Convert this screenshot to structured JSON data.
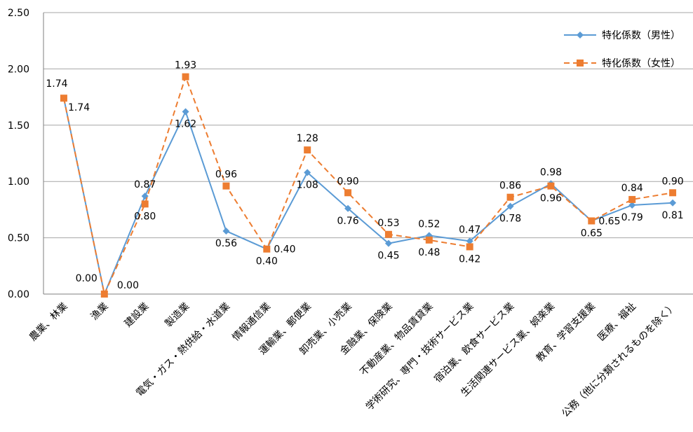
{
  "chart_data": {
    "type": "line",
    "categories": [
      "農業、林業",
      "漁業",
      "建設業",
      "製造業",
      "電気・ガス・熱供給・水道業",
      "情報通信業",
      "運輸業、郵便業",
      "卸売業、小売業",
      "金融業、保険業",
      "不動産業、物品賃貸業",
      "学術研究、専門・技術サービス業",
      "宿泊業、飲食サービス業",
      "生活関連サービス業、娯楽業",
      "教育、学習支援業",
      "医療、福祉",
      "公務（他に分類されるものを除く）"
    ],
    "series": [
      {
        "name": "特化係数（男性）",
        "color": "#5B9BD5",
        "marker": "diamond",
        "line": "solid",
        "values": [
          1.74,
          0.0,
          0.87,
          1.62,
          0.56,
          0.4,
          1.08,
          0.76,
          0.45,
          0.52,
          0.47,
          0.78,
          0.98,
          0.65,
          0.79,
          0.81
        ],
        "labels": [
          "1.74",
          "0.00",
          "0.87",
          "1.62",
          "0.56",
          "0.40",
          "1.08",
          "0.76",
          "0.45",
          "0.52",
          "0.47",
          "0.78",
          "0.98",
          "0.65",
          "0.79",
          "0.81"
        ]
      },
      {
        "name": "特化係数（女性）",
        "color": "#ED7D31",
        "marker": "square",
        "line": "dashed",
        "values": [
          1.74,
          0.0,
          0.8,
          1.93,
          0.96,
          0.4,
          1.28,
          0.9,
          0.53,
          0.48,
          0.42,
          0.86,
          0.96,
          0.65,
          0.84,
          0.9
        ],
        "labels": [
          "1.74",
          "0.00",
          "0.80",
          "1.93",
          "0.96",
          "0.40",
          "1.28",
          "0.90",
          "0.53",
          "0.48",
          "0.42",
          "0.86",
          "0.96",
          "0.65",
          "0.84",
          "0.90"
        ]
      }
    ],
    "ylim": [
      0,
      2.5
    ],
    "yticks": [
      "0.00",
      "0.50",
      "1.00",
      "1.50",
      "2.00",
      "2.50"
    ],
    "grid": true,
    "legend": "top-right"
  }
}
